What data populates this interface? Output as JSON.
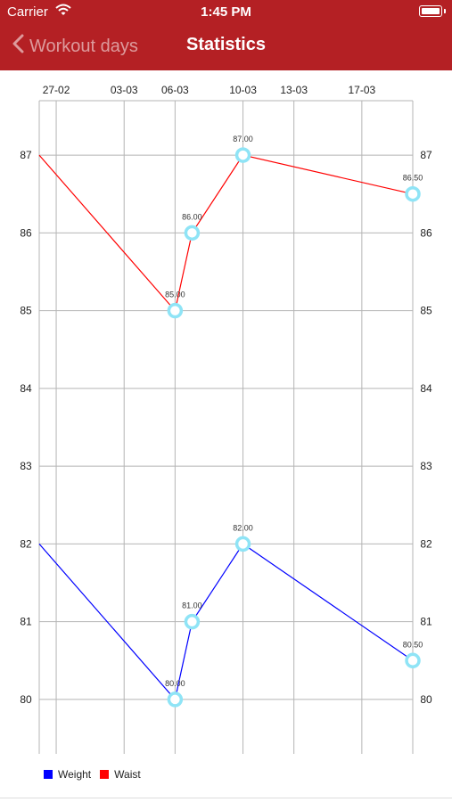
{
  "status_bar": {
    "carrier": "Carrier",
    "time": "1:45 PM"
  },
  "nav": {
    "back_label": "Workout days",
    "title": "Statistics"
  },
  "colors": {
    "header": "#b42024",
    "weight": "#0000ff",
    "waist": "#ff0000",
    "marker": "#8fe4f6",
    "grid": "#b5b5b5"
  },
  "legend": [
    {
      "label": "Weight",
      "color": "#0000ff"
    },
    {
      "label": "Waist",
      "color": "#ff0000"
    }
  ],
  "chart_data": {
    "type": "line",
    "x_tick_labels": [
      "27-02",
      "03-03",
      "06-03",
      "10-03",
      "13-03",
      "17-03"
    ],
    "x_tick_dates": [
      "2017-02-27",
      "2017-03-03",
      "2017-03-06",
      "2017-03-10",
      "2017-03-13",
      "2017-03-17"
    ],
    "x_range": [
      "2017-02-26",
      "2017-03-20"
    ],
    "y_ticks": [
      80,
      81,
      82,
      83,
      84,
      85,
      86,
      87
    ],
    "ylim": [
      79.3,
      87.7
    ],
    "grid": true,
    "legend_position": "bottom-left",
    "series": [
      {
        "name": "Waist",
        "color": "#ff0000",
        "points": [
          {
            "x": "2017-02-26",
            "y": 87.0,
            "label": ""
          },
          {
            "x": "2017-03-06",
            "y": 85.0,
            "label": "85.00"
          },
          {
            "x": "2017-03-07",
            "y": 86.0,
            "label": "86.00"
          },
          {
            "x": "2017-03-10",
            "y": 87.0,
            "label": "87.00"
          },
          {
            "x": "2017-03-20",
            "y": 86.5,
            "label": "86.50"
          }
        ]
      },
      {
        "name": "Weight",
        "color": "#0000ff",
        "points": [
          {
            "x": "2017-02-26",
            "y": 82.0,
            "label": ""
          },
          {
            "x": "2017-03-06",
            "y": 80.0,
            "label": "80.00"
          },
          {
            "x": "2017-03-07",
            "y": 81.0,
            "label": "81.00"
          },
          {
            "x": "2017-03-10",
            "y": 82.0,
            "label": "82.00"
          },
          {
            "x": "2017-03-20",
            "y": 80.5,
            "label": "80.50"
          }
        ]
      }
    ]
  }
}
